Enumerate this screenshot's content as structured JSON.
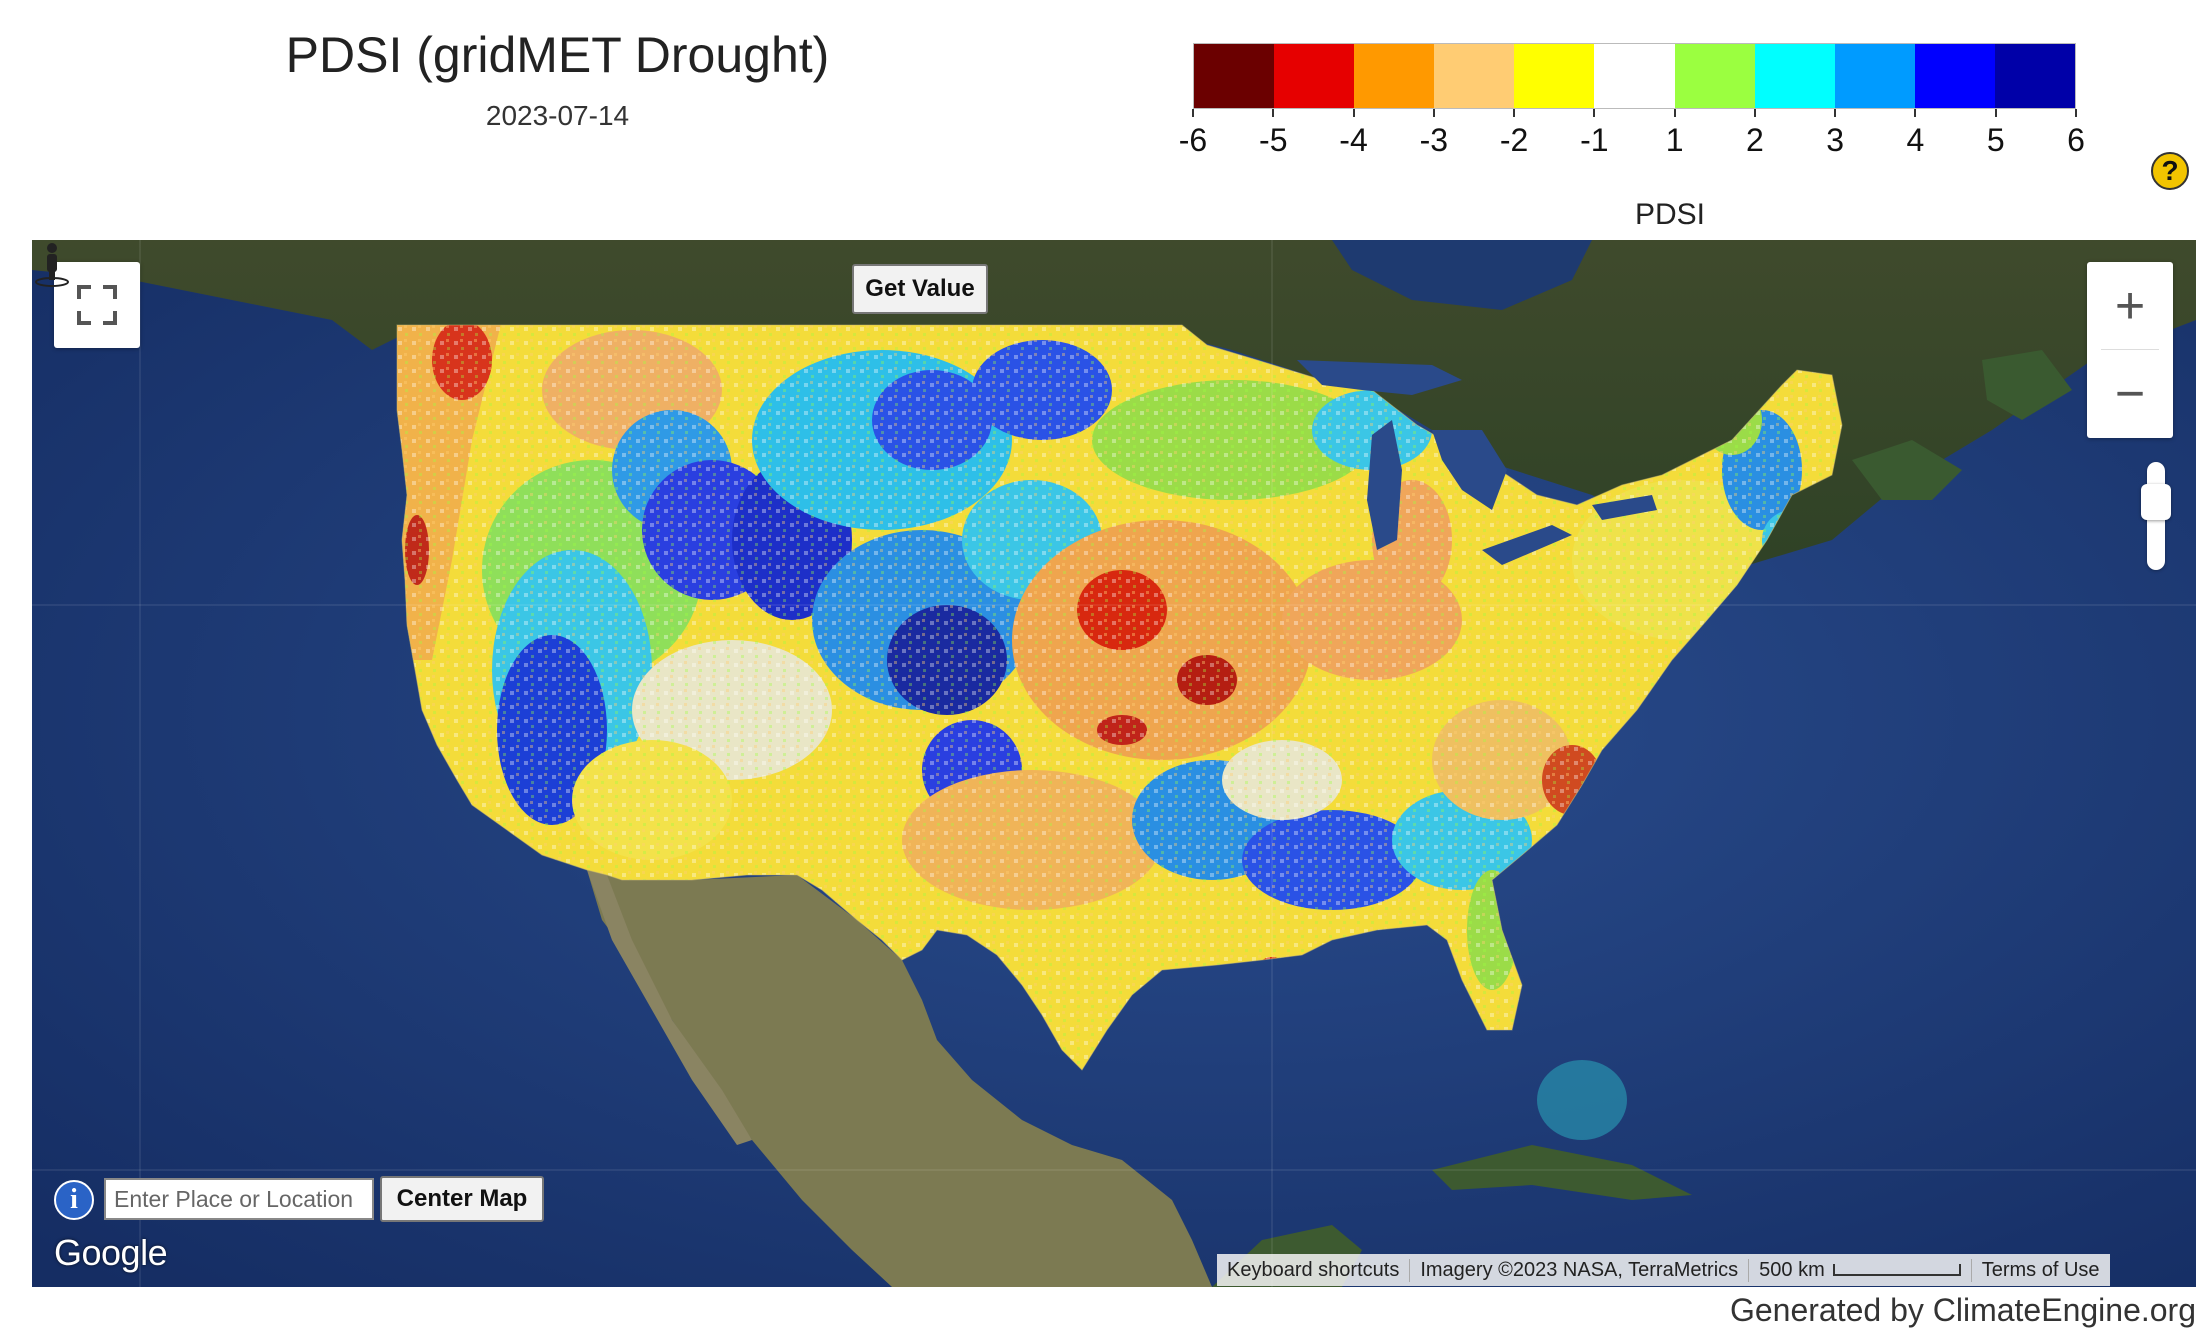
{
  "header": {
    "title": "PDSI (gridMET Drought)",
    "date": "2023-07-14"
  },
  "legend": {
    "title": "PDSI",
    "ticks": [
      "-6",
      "-5",
      "-4",
      "-3",
      "-2",
      "-1",
      "1",
      "2",
      "3",
      "4",
      "5",
      "6"
    ],
    "colors": [
      "#6b0000",
      "#e60000",
      "#ff9900",
      "#ffcc73",
      "#ffff00",
      "#ffffff",
      "#9bff40",
      "#00ffff",
      "#009bff",
      "#0000ff",
      "#0000a8"
    ]
  },
  "map": {
    "get_value_label": "Get Value",
    "zoom_in_label": "+",
    "zoom_out_label": "−",
    "search": {
      "placeholder": "Enter Place or Location"
    },
    "center_map_label": "Center Map",
    "info_label": "i",
    "google_logo": "Google",
    "attribution": {
      "shortcuts": "Keyboard shortcuts",
      "imagery": "Imagery ©2023 NASA, TerraMetrics",
      "scale": "500 km",
      "terms": "Terms of Use"
    }
  },
  "footer": {
    "generated": "Generated by ClimateEngine.org"
  },
  "help": {
    "label": "?"
  }
}
